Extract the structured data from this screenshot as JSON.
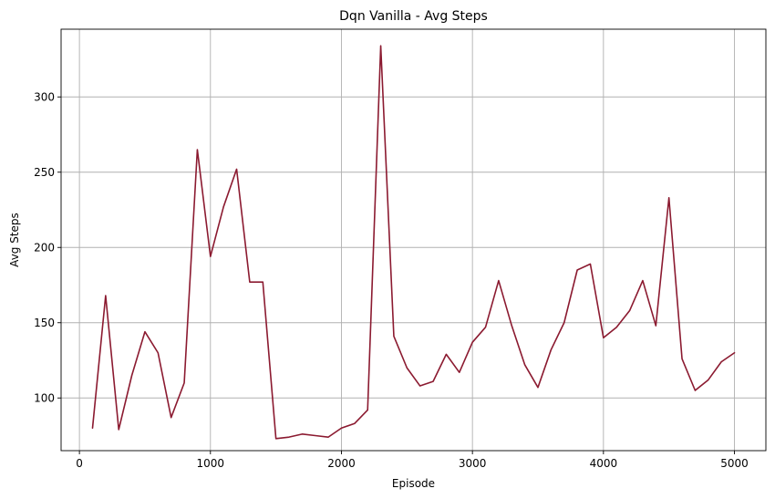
{
  "chart_data": {
    "type": "line",
    "title": "Dqn Vanilla - Avg Steps",
    "xlabel": "Episode",
    "ylabel": "Avg Steps",
    "xlim": [
      -140,
      5240
    ],
    "ylim": [
      65,
      345
    ],
    "xticks": [
      0,
      1000,
      2000,
      3000,
      4000,
      5000
    ],
    "yticks": [
      100,
      150,
      200,
      250,
      300
    ],
    "grid": true,
    "series": [
      {
        "color": "#8b1a30",
        "x": [
          100,
          200,
          300,
          400,
          500,
          600,
          700,
          800,
          900,
          1000,
          1100,
          1200,
          1300,
          1400,
          1500,
          1600,
          1700,
          1800,
          1900,
          2000,
          2100,
          2200,
          2300,
          2400,
          2500,
          2600,
          2700,
          2800,
          2900,
          3000,
          3100,
          3200,
          3300,
          3400,
          3500,
          3600,
          3700,
          3800,
          3900,
          4000,
          4100,
          4200,
          4300,
          4400,
          4500,
          4600,
          4700,
          4800,
          4900,
          5000
        ],
        "y": [
          80,
          168,
          79,
          115,
          144,
          130,
          87,
          110,
          265,
          194,
          227,
          252,
          177,
          177,
          73,
          74,
          76,
          75,
          74,
          80,
          83,
          92,
          334,
          141,
          120,
          108,
          111,
          129,
          117,
          137,
          147,
          178,
          148,
          122,
          107,
          132,
          150,
          185,
          189,
          140,
          147,
          158,
          178,
          148,
          233,
          126,
          105,
          112,
          124,
          130
        ]
      }
    ]
  }
}
